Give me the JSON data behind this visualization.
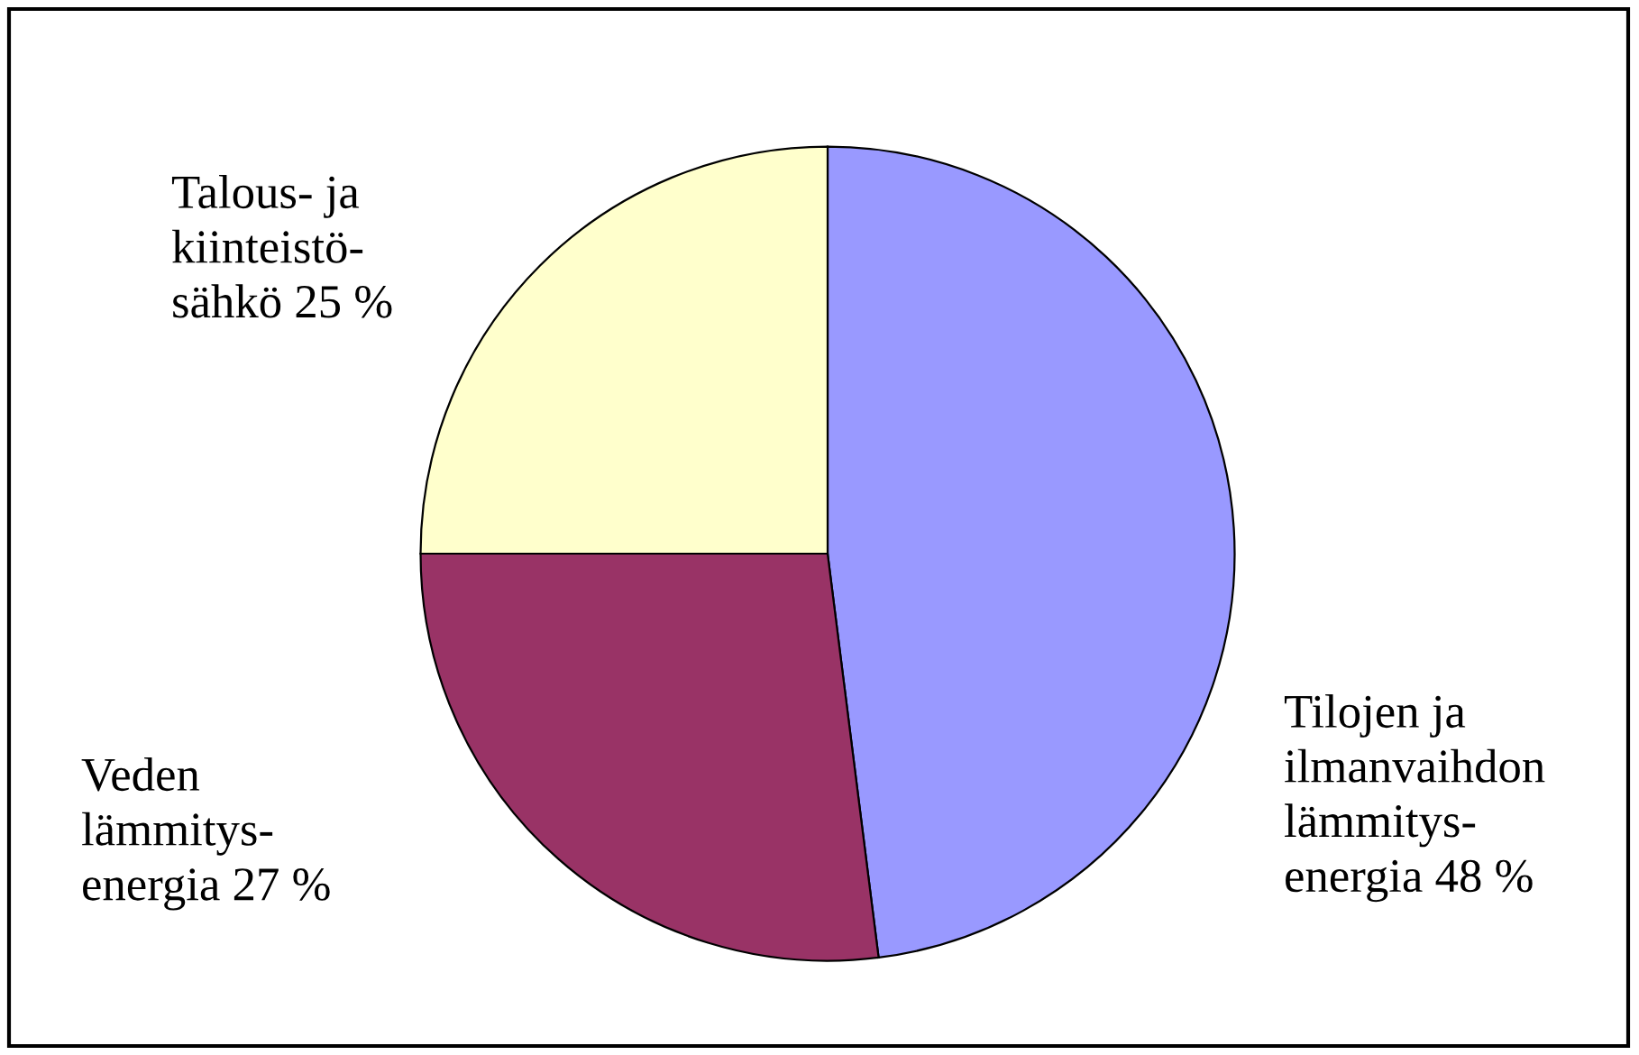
{
  "chart_data": {
    "type": "pie",
    "categories": [
      "Tilojen ja\nilmanvaihdon\nlämmitys-\nenergia",
      "Veden\nlämmitys-\nenergia",
      "Talous- ja\nkiinteistö-\nsähkö"
    ],
    "values": [
      48,
      27,
      25
    ],
    "value_labels": [
      "48 %",
      "27 %",
      "25 %"
    ],
    "colors": [
      "#9999ff",
      "#993366",
      "#ffffcc"
    ],
    "legend": false
  }
}
